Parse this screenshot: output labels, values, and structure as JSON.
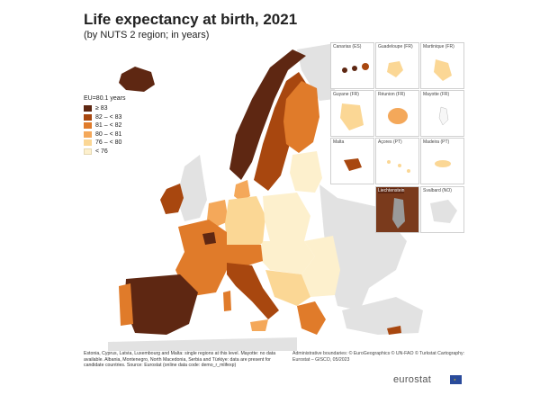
{
  "title": "Life expectancy at birth, 2021",
  "subtitle": "(by NUTS 2 region; in years)",
  "legend": {
    "title": "EU=80.1 years",
    "items": [
      {
        "label": "≥ 83",
        "color": "#5e2712"
      },
      {
        "label": "82 – < 83",
        "color": "#a8470f"
      },
      {
        "label": "81 – < 82",
        "color": "#e07b2a"
      },
      {
        "label": "80 – < 81",
        "color": "#f4a85a"
      },
      {
        "label": "76 – < 80",
        "color": "#fbd795"
      },
      {
        "label": "< 76",
        "color": "#fdf0cd"
      }
    ]
  },
  "insets": [
    {
      "label": "Canarias (ES)"
    },
    {
      "label": "Guadeloupe (FR)"
    },
    {
      "label": "Martinique (FR)"
    },
    {
      "label": "Guyane (FR)"
    },
    {
      "label": "Réunion (FR)"
    },
    {
      "label": "Mayotte (FR)"
    },
    {
      "label": "Malta"
    },
    {
      "label": "Açores (PT)"
    },
    {
      "label": "Madeira (PT)"
    },
    {
      "label": "Liechtenstein"
    },
    {
      "label": "Svalbard (NO)"
    }
  ],
  "footnote": "Estonia, Cyprus, Latvia, Luxembourg and Malta: single regions at this level. Mayotte: no data available. Albania, Montenegro, North Macedonia, Serbia and Türkiye: data are present for candidate countries. Source: Eurostat (online data code: demo_r_mlifexp)",
  "credits": "Administrative boundaries: © EuroGeographics © UN-FAO © Turkstat Cartography: Eurostat – GISCO, 05/2023",
  "brand": "eurostat"
}
